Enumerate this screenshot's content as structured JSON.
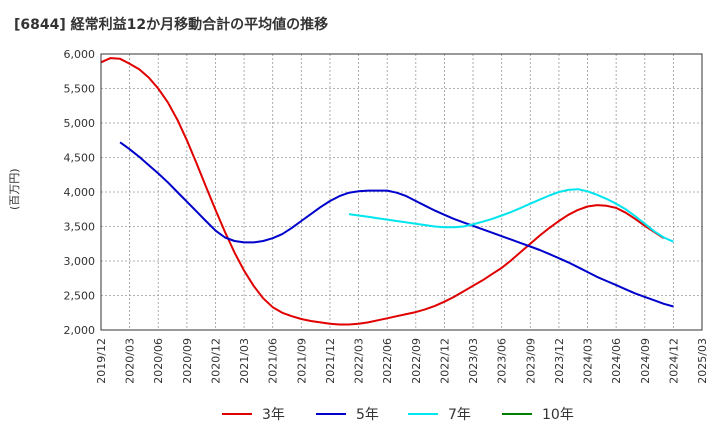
{
  "title": "[6844]  経常利益12か月移動合計の平均値の推移",
  "colors": {
    "3y": "#e00000",
    "5y": "#0000cc",
    "7y": "#00e5ee",
    "10y": "#008000"
  },
  "chart_data": {
    "type": "line",
    "title": "[6844]  経常利益12か月移動合計の平均値の推移",
    "ylabel": "(百万円)",
    "xlabel": "",
    "ylim": [
      2000,
      6000
    ],
    "yticks": [
      2000,
      2500,
      3000,
      3500,
      4000,
      4500,
      5000,
      5500,
      6000
    ],
    "ytick_labels": [
      "2,000",
      "2,500",
      "3,000",
      "3,500",
      "4,000",
      "4,500",
      "5,000",
      "5,500",
      "6,000"
    ],
    "xticks": [
      "2019/12",
      "2020/03",
      "2020/06",
      "2020/09",
      "2020/12",
      "2021/03",
      "2021/06",
      "2021/09",
      "2021/12",
      "2022/03",
      "2022/06",
      "2022/09",
      "2022/12",
      "2023/03",
      "2023/06",
      "2023/09",
      "2023/12",
      "2024/03",
      "2024/06",
      "2024/09",
      "2024/12",
      "2025/03"
    ],
    "grid": true,
    "legend_position": "bottom",
    "series": [
      {
        "name": "3年",
        "color": "#e00000",
        "points": [
          [
            "2019/12",
            5880
          ],
          [
            "2020/01",
            5940
          ],
          [
            "2020/02",
            5930
          ],
          [
            "2020/03",
            5860
          ],
          [
            "2020/04",
            5780
          ],
          [
            "2020/05",
            5660
          ],
          [
            "2020/06",
            5500
          ],
          [
            "2020/07",
            5300
          ],
          [
            "2020/08",
            5050
          ],
          [
            "2020/09",
            4750
          ],
          [
            "2020/10",
            4420
          ],
          [
            "2020/11",
            4080
          ],
          [
            "2020/12",
            3740
          ],
          [
            "2021/01",
            3420
          ],
          [
            "2021/02",
            3120
          ],
          [
            "2021/03",
            2860
          ],
          [
            "2021/04",
            2640
          ],
          [
            "2021/05",
            2460
          ],
          [
            "2021/06",
            2330
          ],
          [
            "2021/07",
            2250
          ],
          [
            "2021/08",
            2200
          ],
          [
            "2021/09",
            2160
          ],
          [
            "2021/10",
            2130
          ],
          [
            "2021/11",
            2110
          ],
          [
            "2021/12",
            2090
          ],
          [
            "2022/01",
            2080
          ],
          [
            "2022/02",
            2080
          ],
          [
            "2022/03",
            2090
          ],
          [
            "2022/04",
            2110
          ],
          [
            "2022/05",
            2140
          ],
          [
            "2022/06",
            2170
          ],
          [
            "2022/07",
            2200
          ],
          [
            "2022/08",
            2230
          ],
          [
            "2022/09",
            2260
          ],
          [
            "2022/10",
            2300
          ],
          [
            "2022/11",
            2350
          ],
          [
            "2022/12",
            2410
          ],
          [
            "2023/01",
            2480
          ],
          [
            "2023/02",
            2560
          ],
          [
            "2023/03",
            2640
          ],
          [
            "2023/04",
            2720
          ],
          [
            "2023/05",
            2810
          ],
          [
            "2023/06",
            2900
          ],
          [
            "2023/07",
            3010
          ],
          [
            "2023/08",
            3130
          ],
          [
            "2023/09",
            3250
          ],
          [
            "2023/10",
            3370
          ],
          [
            "2023/11",
            3480
          ],
          [
            "2023/12",
            3580
          ],
          [
            "2024/01",
            3670
          ],
          [
            "2024/02",
            3740
          ],
          [
            "2024/03",
            3790
          ],
          [
            "2024/04",
            3810
          ],
          [
            "2024/05",
            3800
          ],
          [
            "2024/06",
            3770
          ],
          [
            "2024/07",
            3700
          ],
          [
            "2024/08",
            3610
          ],
          [
            "2024/09",
            3510
          ],
          [
            "2024/10",
            3420
          ],
          [
            "2024/11",
            3330
          ]
        ]
      },
      {
        "name": "5年",
        "color": "#0000cc",
        "points": [
          [
            "2020/02",
            4720
          ],
          [
            "2020/03",
            4620
          ],
          [
            "2020/04",
            4510
          ],
          [
            "2020/05",
            4390
          ],
          [
            "2020/06",
            4270
          ],
          [
            "2020/07",
            4140
          ],
          [
            "2020/08",
            4000
          ],
          [
            "2020/09",
            3860
          ],
          [
            "2020/10",
            3720
          ],
          [
            "2020/11",
            3580
          ],
          [
            "2020/12",
            3440
          ],
          [
            "2021/01",
            3340
          ],
          [
            "2021/02",
            3290
          ],
          [
            "2021/03",
            3270
          ],
          [
            "2021/04",
            3270
          ],
          [
            "2021/05",
            3290
          ],
          [
            "2021/06",
            3330
          ],
          [
            "2021/07",
            3390
          ],
          [
            "2021/08",
            3480
          ],
          [
            "2021/09",
            3580
          ],
          [
            "2021/10",
            3680
          ],
          [
            "2021/11",
            3780
          ],
          [
            "2021/12",
            3870
          ],
          [
            "2022/01",
            3940
          ],
          [
            "2022/02",
            3990
          ],
          [
            "2022/03",
            4010
          ],
          [
            "2022/04",
            4020
          ],
          [
            "2022/05",
            4020
          ],
          [
            "2022/06",
            4020
          ],
          [
            "2022/07",
            3990
          ],
          [
            "2022/08",
            3940
          ],
          [
            "2022/09",
            3870
          ],
          [
            "2022/10",
            3800
          ],
          [
            "2022/11",
            3730
          ],
          [
            "2022/12",
            3670
          ],
          [
            "2023/01",
            3610
          ],
          [
            "2023/02",
            3560
          ],
          [
            "2023/03",
            3510
          ],
          [
            "2023/04",
            3460
          ],
          [
            "2023/05",
            3410
          ],
          [
            "2023/06",
            3360
          ],
          [
            "2023/07",
            3310
          ],
          [
            "2023/08",
            3260
          ],
          [
            "2023/09",
            3210
          ],
          [
            "2023/10",
            3160
          ],
          [
            "2023/11",
            3100
          ],
          [
            "2023/12",
            3040
          ],
          [
            "2024/01",
            2980
          ],
          [
            "2024/02",
            2910
          ],
          [
            "2024/03",
            2840
          ],
          [
            "2024/04",
            2770
          ],
          [
            "2024/05",
            2710
          ],
          [
            "2024/06",
            2650
          ],
          [
            "2024/07",
            2590
          ],
          [
            "2024/08",
            2530
          ],
          [
            "2024/09",
            2480
          ],
          [
            "2024/10",
            2430
          ],
          [
            "2024/11",
            2380
          ],
          [
            "2024/12",
            2340
          ]
        ]
      },
      {
        "name": "7年",
        "color": "#00e5ee",
        "points": [
          [
            "2022/02",
            3680
          ],
          [
            "2022/03",
            3660
          ],
          [
            "2022/04",
            3640
          ],
          [
            "2022/05",
            3620
          ],
          [
            "2022/06",
            3600
          ],
          [
            "2022/07",
            3580
          ],
          [
            "2022/08",
            3560
          ],
          [
            "2022/09",
            3540
          ],
          [
            "2022/10",
            3520
          ],
          [
            "2022/11",
            3500
          ],
          [
            "2022/12",
            3490
          ],
          [
            "2023/01",
            3490
          ],
          [
            "2023/02",
            3500
          ],
          [
            "2023/03",
            3530
          ],
          [
            "2023/04",
            3570
          ],
          [
            "2023/05",
            3610
          ],
          [
            "2023/06",
            3660
          ],
          [
            "2023/07",
            3710
          ],
          [
            "2023/08",
            3770
          ],
          [
            "2023/09",
            3830
          ],
          [
            "2023/10",
            3890
          ],
          [
            "2023/11",
            3950
          ],
          [
            "2023/12",
            4000
          ],
          [
            "2024/01",
            4030
          ],
          [
            "2024/02",
            4040
          ],
          [
            "2024/03",
            4010
          ],
          [
            "2024/04",
            3960
          ],
          [
            "2024/05",
            3900
          ],
          [
            "2024/06",
            3830
          ],
          [
            "2024/07",
            3750
          ],
          [
            "2024/08",
            3650
          ],
          [
            "2024/09",
            3540
          ],
          [
            "2024/10",
            3430
          ],
          [
            "2024/11",
            3340
          ],
          [
            "2024/12",
            3280
          ]
        ]
      },
      {
        "name": "10年",
        "color": "#008000",
        "points": []
      }
    ]
  }
}
